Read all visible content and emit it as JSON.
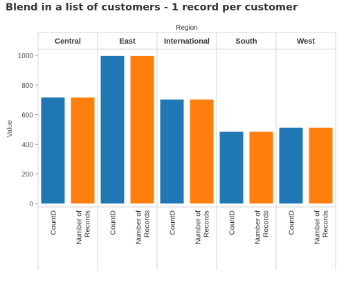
{
  "title": "Blend in a list of customers - 1 record per customer",
  "chart_data": {
    "type": "bar",
    "column_header": "Region",
    "ylabel": "Value",
    "categories": [
      "Central",
      "East",
      "International",
      "South",
      "West"
    ],
    "measures": [
      "CountD",
      "Number of Records"
    ],
    "measure_labels": [
      [
        "CountD"
      ],
      [
        "Number of",
        "Records"
      ]
    ],
    "series": [
      {
        "values": [
          716,
          996,
          702,
          484,
          511
        ],
        "color": "#1f77b4"
      },
      {
        "values": [
          716,
          996,
          702,
          484,
          511
        ],
        "color": "#ff7f0e"
      }
    ],
    "ylim": [
      0,
      1070
    ],
    "yticks": [
      0,
      200,
      400,
      600,
      800,
      1000
    ],
    "grid": false,
    "legend": "none"
  }
}
